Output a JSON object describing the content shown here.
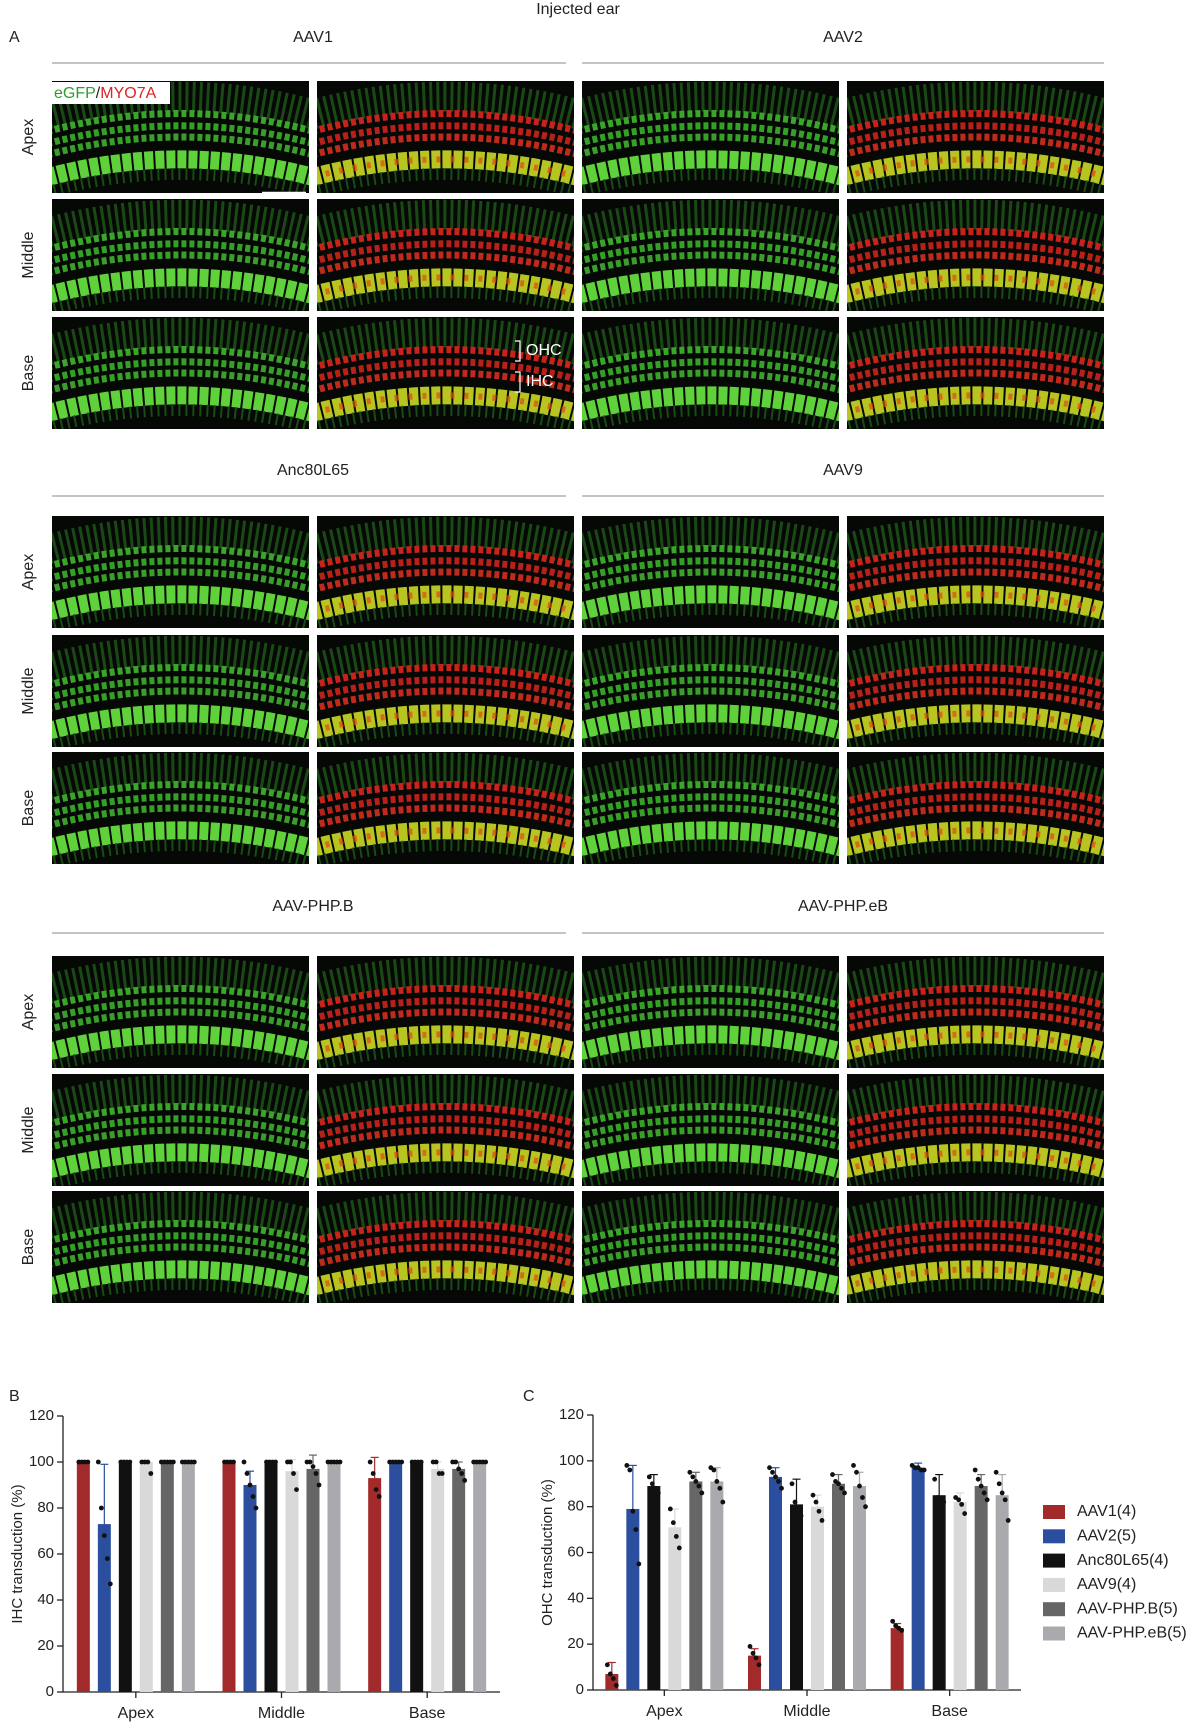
{
  "panel_a": {
    "label": "A",
    "title": "Injected ear",
    "groups": [
      "AAV1",
      "AAV2",
      "Anc80L65",
      "AAV9",
      "AAV-PHP.B",
      "AAV-PHP.eB"
    ],
    "rows": [
      "Apex",
      "Middle",
      "Base"
    ],
    "stain_legend": [
      "eGFP",
      "/",
      "MYO7A"
    ],
    "annotations": [
      "OHC",
      "IHC"
    ]
  },
  "chart_data": [
    {
      "type": "bar",
      "panel_label": "B",
      "y_label": "IHC transduction (%)",
      "categories": [
        "Apex",
        "Middle",
        "Base"
      ],
      "ylim": [
        0,
        120
      ],
      "yticks": [
        0,
        20,
        40,
        60,
        80,
        100,
        120
      ],
      "series": [
        {
          "color": "#a32a2a",
          "values": [
            100,
            100,
            93
          ],
          "errors": [
            0,
            0,
            9
          ],
          "points": [
            [
              100,
              100,
              100,
              100
            ],
            [
              100,
              100,
              100,
              100
            ],
            [
              100,
              95,
              88,
              85
            ]
          ]
        },
        {
          "color": "#2b4e9e",
          "values": [
            73,
            90,
            100
          ],
          "errors": [
            26,
            6,
            0
          ],
          "points": [
            [
              100,
              80,
              68,
              58,
              47
            ],
            [
              100,
              95,
              90,
              85,
              80
            ],
            [
              100,
              100,
              100,
              100,
              100
            ]
          ]
        },
        {
          "color": "#111111",
          "values": [
            100,
            100,
            100
          ],
          "errors": [
            0,
            0,
            0
          ],
          "points": [
            [
              100,
              100,
              100,
              100
            ],
            [
              100,
              100,
              100,
              100
            ],
            [
              100,
              100,
              100,
              100
            ]
          ]
        },
        {
          "color": "#d9d9d9",
          "values": [
            100,
            96,
            97
          ],
          "errors": [
            0,
            5,
            3
          ],
          "points": [
            [
              100,
              100,
              100,
              95
            ],
            [
              100,
              100,
              95,
              88
            ],
            [
              100,
              100,
              95,
              95
            ]
          ]
        },
        {
          "color": "#666666",
          "values": [
            100,
            97,
            97
          ],
          "errors": [
            0,
            6,
            3
          ],
          "points": [
            [
              100,
              100,
              100,
              100,
              100
            ],
            [
              100,
              100,
              98,
              95,
              90
            ],
            [
              100,
              100,
              97,
              95,
              92
            ]
          ]
        },
        {
          "color": "#a9a9ae",
          "values": [
            100,
            100,
            100
          ],
          "errors": [
            0,
            0,
            0
          ],
          "points": [
            [
              100,
              100,
              100,
              100,
              100
            ],
            [
              100,
              100,
              100,
              100,
              100
            ],
            [
              100,
              100,
              100,
              100,
              100
            ]
          ]
        }
      ]
    },
    {
      "type": "bar",
      "panel_label": "C",
      "y_label": "OHC transduction (%)",
      "legend": "right",
      "categories": [
        "Apex",
        "Middle",
        "Base"
      ],
      "ylim": [
        0,
        120
      ],
      "yticks": [
        0,
        20,
        40,
        60,
        80,
        100,
        120
      ],
      "series": [
        {
          "name": "AAV1(4)",
          "color": "#a32a2a",
          "values": [
            7,
            15,
            27
          ],
          "errors": [
            5,
            3,
            2
          ],
          "points": [
            [
              11,
              7,
              5,
              2
            ],
            [
              19,
              16,
              14,
              11
            ],
            [
              30,
              28,
              27,
              26
            ]
          ]
        },
        {
          "name": "AAV2(5)",
          "color": "#2b4e9e",
          "values": [
            79,
            93,
            97
          ],
          "errors": [
            19,
            4,
            2
          ],
          "points": [
            [
              98,
              96,
              78,
              70,
              55
            ],
            [
              97,
              95,
              93,
              91,
              88
            ],
            [
              98,
              97,
              97,
              96,
              96
            ]
          ]
        },
        {
          "name": "Anc80L65(4)",
          "color": "#111111",
          "values": [
            89,
            81,
            85
          ],
          "errors": [
            5,
            11,
            9
          ],
          "points": [
            [
              93,
              90,
              88,
              86
            ],
            [
              90,
              82,
              77,
              76
            ],
            [
              92,
              84,
              82,
              82
            ]
          ]
        },
        {
          "name": "AAV9(4)",
          "color": "#d9d9d9",
          "values": [
            71,
            80,
            82
          ],
          "errors": [
            8,
            5,
            4
          ],
          "points": [
            [
              79,
              73,
              67,
              62
            ],
            [
              85,
              82,
              78,
              74
            ],
            [
              84,
              83,
              81,
              77
            ]
          ]
        },
        {
          "name": "AAV-PHP.B(5)",
          "color": "#666666",
          "values": [
            91,
            90,
            89
          ],
          "errors": [
            4,
            4,
            5
          ],
          "points": [
            [
              95,
              93,
              91,
              89,
              86
            ],
            [
              94,
              91,
              90,
              88,
              86
            ],
            [
              96,
              92,
              89,
              86,
              83
            ]
          ]
        },
        {
          "name": "AAV-PHP.eB(5)",
          "color": "#a9a9ae",
          "values": [
            91,
            89,
            85
          ],
          "errors": [
            6,
            6,
            9
          ],
          "points": [
            [
              97,
              96,
              91,
              88,
              82
            ],
            [
              98,
              95,
              89,
              84,
              80
            ],
            [
              95,
              90,
              86,
              83,
              74
            ]
          ]
        }
      ]
    }
  ]
}
